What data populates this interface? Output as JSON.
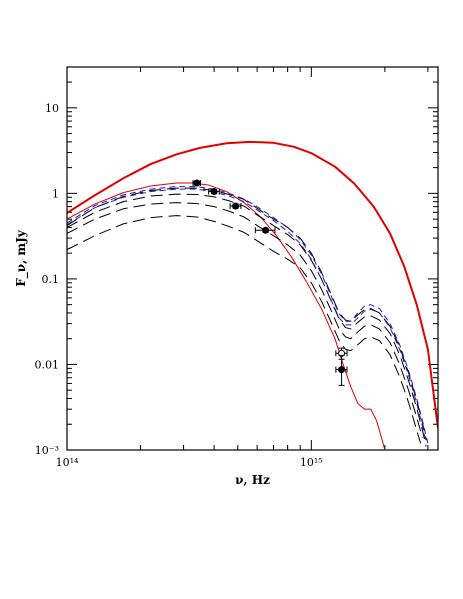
{
  "chart_data": {
    "type": "line",
    "xscale": "log",
    "yscale": "log",
    "xlim": [
      100000000000000.0,
      3300000000000000.0
    ],
    "ylim": [
      0.001,
      30
    ],
    "xlabel": "ν, Hz",
    "ylabel": "F_ν, mJy",
    "grid": false,
    "x_tick_labels": [
      {
        "value": 100000000000000.0,
        "label": "10¹⁴"
      },
      {
        "value": 1000000000000000.0,
        "label": "10¹⁵"
      }
    ],
    "y_tick_labels": [
      {
        "value": 10,
        "label": "10"
      },
      {
        "value": 1,
        "label": "1"
      },
      {
        "value": 0.1,
        "label": "0.1"
      },
      {
        "value": 0.01,
        "label": "0.01"
      },
      {
        "value": 0.001,
        "label": "10⁻³"
      }
    ],
    "series": [
      {
        "style": "solid",
        "color": "#e00000",
        "width": 2,
        "points": [
          [
            100000000000000.0,
            0.59
          ],
          [
            130000000000000.0,
            0.95
          ],
          [
            170000000000000.0,
            1.5
          ],
          [
            220000000000000.0,
            2.2
          ],
          [
            280000000000000.0,
            2.85
          ],
          [
            350000000000000.0,
            3.4
          ],
          [
            450000000000000.0,
            3.85
          ],
          [
            560000000000000.0,
            4.0
          ],
          [
            700000000000000.0,
            3.9
          ],
          [
            850000000000000.0,
            3.5
          ],
          [
            1000000000000000.0,
            2.95
          ],
          [
            1250000000000000.0,
            2.05
          ],
          [
            1500000000000000.0,
            1.3
          ],
          [
            1800000000000000.0,
            0.7
          ],
          [
            2100000000000000.0,
            0.34
          ],
          [
            2400000000000000.0,
            0.14
          ],
          [
            2700000000000000.0,
            0.05
          ],
          [
            3000000000000000.0,
            0.015
          ],
          [
            3300000000000000.0,
            0.0018
          ]
        ]
      },
      {
        "style": "solid",
        "color": "#e00000",
        "width": 1,
        "points": [
          [
            100000000000000.0,
            0.5
          ],
          [
            130000000000000.0,
            0.75
          ],
          [
            170000000000000.0,
            1.02
          ],
          [
            220000000000000.0,
            1.22
          ],
          [
            280000000000000.0,
            1.32
          ],
          [
            330000000000000.0,
            1.32
          ],
          [
            380000000000000.0,
            1.25
          ],
          [
            450000000000000.0,
            1.05
          ],
          [
            530000000000000.0,
            0.78
          ],
          [
            620000000000000.0,
            0.53
          ],
          [
            720000000000000.0,
            0.32
          ],
          [
            830000000000000.0,
            0.18
          ],
          [
            950000000000000.0,
            0.095
          ],
          [
            1100000000000000.0,
            0.045
          ],
          [
            1250000000000000.0,
            0.02
          ],
          [
            1350000000000000.0,
            0.01
          ],
          [
            1450000000000000.0,
            0.0055
          ],
          [
            1550000000000000.0,
            0.0035
          ],
          [
            1650000000000000.0,
            0.003
          ],
          [
            1750000000000000.0,
            0.003
          ],
          [
            1850000000000000.0,
            0.0022
          ],
          [
            1950000000000000.0,
            0.0013
          ],
          [
            2000000000000000.0,
            0.001
          ]
        ]
      },
      {
        "style": "dashed-long",
        "color": "#000000",
        "width": 1,
        "points": [
          [
            100000000000000.0,
            0.42
          ],
          [
            130000000000000.0,
            0.68
          ],
          [
            170000000000000.0,
            0.92
          ],
          [
            220000000000000.0,
            1.08
          ],
          [
            280000000000000.0,
            1.15
          ],
          [
            340000000000000.0,
            1.15
          ],
          [
            400000000000000.0,
            1.08
          ],
          [
            460000000000000.0,
            0.97
          ],
          [
            530000000000000.0,
            0.85
          ],
          [
            600000000000000.0,
            0.67
          ],
          [
            700000000000000.0,
            0.5
          ],
          [
            800000000000000.0,
            0.4
          ],
          [
            900000000000000.0,
            0.3
          ],
          [
            1000000000000000.0,
            0.2
          ],
          [
            1100000000000000.0,
            0.12
          ],
          [
            1200000000000000.0,
            0.068
          ],
          [
            1300000000000000.0,
            0.04
          ],
          [
            1380000000000000.0,
            0.033
          ],
          [
            1450000000000000.0,
            0.032
          ],
          [
            1550000000000000.0,
            0.038
          ],
          [
            1650000000000000.0,
            0.044
          ],
          [
            1750000000000000.0,
            0.045
          ],
          [
            1900000000000000.0,
            0.04
          ],
          [
            2100000000000000.0,
            0.028
          ],
          [
            2300000000000000.0,
            0.016
          ],
          [
            2500000000000000.0,
            0.008
          ],
          [
            2700000000000000.0,
            0.0038
          ],
          [
            2850000000000000.0,
            0.0021
          ],
          [
            2950000000000000.0,
            0.0013
          ]
        ]
      },
      {
        "style": "dashed-long",
        "color": "#000000",
        "width": 1,
        "points": [
          [
            100000000000000.0,
            0.4
          ],
          [
            130000000000000.0,
            0.6
          ],
          [
            170000000000000.0,
            0.8
          ],
          [
            220000000000000.0,
            0.93
          ],
          [
            280000000000000.0,
            0.98
          ],
          [
            340000000000000.0,
            0.97
          ],
          [
            400000000000000.0,
            0.91
          ],
          [
            460000000000000.0,
            0.82
          ],
          [
            530000000000000.0,
            0.71
          ],
          [
            600000000000000.0,
            0.56
          ],
          [
            700000000000000.0,
            0.42
          ],
          [
            800000000000000.0,
            0.33
          ],
          [
            900000000000000.0,
            0.25
          ],
          [
            1000000000000000.0,
            0.165
          ],
          [
            1100000000000000.0,
            0.1
          ],
          [
            1200000000000000.0,
            0.057
          ],
          [
            1300000000000000.0,
            0.034
          ],
          [
            1380000000000000.0,
            0.027
          ],
          [
            1450000000000000.0,
            0.026
          ],
          [
            1550000000000000.0,
            0.031
          ],
          [
            1650000000000000.0,
            0.036
          ],
          [
            1750000000000000.0,
            0.037
          ],
          [
            1900000000000000.0,
            0.033
          ],
          [
            2100000000000000.0,
            0.023
          ],
          [
            2300000000000000.0,
            0.013
          ],
          [
            2500000000000000.0,
            0.0065
          ],
          [
            2700000000000000.0,
            0.0031
          ],
          [
            2850000000000000.0,
            0.0017
          ],
          [
            2950000000000000.0,
            0.0011
          ]
        ]
      },
      {
        "style": "dashed-long",
        "color": "#000000",
        "width": 1,
        "points": [
          [
            100000000000000.0,
            0.34
          ],
          [
            130000000000000.0,
            0.5
          ],
          [
            170000000000000.0,
            0.66
          ],
          [
            220000000000000.0,
            0.75
          ],
          [
            280000000000000.0,
            0.78
          ],
          [
            340000000000000.0,
            0.76
          ],
          [
            400000000000000.0,
            0.7
          ],
          [
            460000000000000.0,
            0.62
          ],
          [
            530000000000000.0,
            0.53
          ],
          [
            600000000000000.0,
            0.42
          ],
          [
            700000000000000.0,
            0.32
          ],
          [
            800000000000000.0,
            0.25
          ],
          [
            900000000000000.0,
            0.19
          ],
          [
            1000000000000000.0,
            0.125
          ],
          [
            1100000000000000.0,
            0.076
          ],
          [
            1200000000000000.0,
            0.044
          ],
          [
            1300000000000000.0,
            0.026
          ],
          [
            1380000000000000.0,
            0.021
          ],
          [
            1450000000000000.0,
            0.02
          ],
          [
            1550000000000000.0,
            0.024
          ],
          [
            1650000000000000.0,
            0.028
          ],
          [
            1750000000000000.0,
            0.029
          ],
          [
            1900000000000000.0,
            0.026
          ],
          [
            2100000000000000.0,
            0.018
          ],
          [
            2300000000000000.0,
            0.01
          ],
          [
            2500000000000000.0,
            0.005
          ],
          [
            2700000000000000.0,
            0.0024
          ],
          [
            2850000000000000.0,
            0.0014
          ]
        ]
      },
      {
        "style": "dashed-long",
        "color": "#000000",
        "width": 1,
        "points": [
          [
            100000000000000.0,
            0.22
          ],
          [
            130000000000000.0,
            0.32
          ],
          [
            170000000000000.0,
            0.44
          ],
          [
            220000000000000.0,
            0.52
          ],
          [
            280000000000000.0,
            0.55
          ],
          [
            340000000000000.0,
            0.53
          ],
          [
            400000000000000.0,
            0.47
          ],
          [
            460000000000000.0,
            0.41
          ],
          [
            530000000000000.0,
            0.35
          ],
          [
            600000000000000.0,
            0.28
          ],
          [
            700000000000000.0,
            0.21
          ],
          [
            800000000000000.0,
            0.17
          ],
          [
            900000000000000.0,
            0.135
          ],
          [
            1000000000000000.0,
            0.09
          ],
          [
            1100000000000000.0,
            0.055
          ],
          [
            1200000000000000.0,
            0.032
          ],
          [
            1300000000000000.0,
            0.019
          ],
          [
            1380000000000000.0,
            0.015
          ],
          [
            1450000000000000.0,
            0.0145
          ],
          [
            1550000000000000.0,
            0.017
          ],
          [
            1650000000000000.0,
            0.02
          ],
          [
            1750000000000000.0,
            0.021
          ],
          [
            1900000000000000.0,
            0.019
          ],
          [
            2100000000000000.0,
            0.013
          ],
          [
            2300000000000000.0,
            0.0072
          ],
          [
            2500000000000000.0,
            0.0036
          ],
          [
            2700000000000000.0,
            0.0017
          ],
          [
            2800000000000000.0,
            0.0012
          ]
        ]
      },
      {
        "style": "dashed-short",
        "color": "#2020b0",
        "width": 1,
        "points": [
          [
            100000000000000.0,
            0.45
          ],
          [
            130000000000000.0,
            0.72
          ],
          [
            170000000000000.0,
            0.96
          ],
          [
            220000000000000.0,
            1.12
          ],
          [
            280000000000000.0,
            1.2
          ],
          [
            340000000000000.0,
            1.2
          ],
          [
            400000000000000.0,
            1.12
          ],
          [
            460000000000000.0,
            1.0
          ],
          [
            530000000000000.0,
            0.86
          ],
          [
            600000000000000.0,
            0.7
          ],
          [
            700000000000000.0,
            0.52
          ],
          [
            800000000000000.0,
            0.4
          ],
          [
            900000000000000.0,
            0.29
          ],
          [
            1000000000000000.0,
            0.19
          ],
          [
            1100000000000000.0,
            0.115
          ],
          [
            1200000000000000.0,
            0.065
          ],
          [
            1300000000000000.0,
            0.039
          ],
          [
            1380000000000000.0,
            0.032
          ],
          [
            1450000000000000.0,
            0.032
          ],
          [
            1550000000000000.0,
            0.04
          ],
          [
            1650000000000000.0,
            0.048
          ],
          [
            1750000000000000.0,
            0.05
          ],
          [
            1900000000000000.0,
            0.045
          ],
          [
            2100000000000000.0,
            0.03
          ],
          [
            2300000000000000.0,
            0.017
          ],
          [
            2500000000000000.0,
            0.0085
          ],
          [
            2700000000000000.0,
            0.004
          ],
          [
            2850000000000000.0,
            0.0022
          ],
          [
            3000000000000000.0,
            0.0012
          ]
        ]
      },
      {
        "style": "dashed-short",
        "color": "#2020b0",
        "width": 1,
        "points": [
          [
            100000000000000.0,
            0.43
          ],
          [
            130000000000000.0,
            0.68
          ],
          [
            170000000000000.0,
            0.9
          ],
          [
            220000000000000.0,
            1.05
          ],
          [
            280000000000000.0,
            1.12
          ],
          [
            340000000000000.0,
            1.12
          ],
          [
            400000000000000.0,
            1.04
          ],
          [
            460000000000000.0,
            0.93
          ],
          [
            530000000000000.0,
            0.8
          ],
          [
            600000000000000.0,
            0.64
          ],
          [
            700000000000000.0,
            0.48
          ],
          [
            800000000000000.0,
            0.36
          ],
          [
            900000000000000.0,
            0.26
          ],
          [
            1000000000000000.0,
            0.17
          ],
          [
            1100000000000000.0,
            0.1
          ],
          [
            1200000000000000.0,
            0.058
          ],
          [
            1300000000000000.0,
            0.035
          ],
          [
            1380000000000000.0,
            0.029
          ],
          [
            1450000000000000.0,
            0.029
          ],
          [
            1550000000000000.0,
            0.035
          ],
          [
            1650000000000000.0,
            0.042
          ],
          [
            1750000000000000.0,
            0.044
          ],
          [
            1900000000000000.0,
            0.04
          ],
          [
            2100000000000000.0,
            0.027
          ],
          [
            2300000000000000.0,
            0.015
          ],
          [
            2500000000000000.0,
            0.0075
          ],
          [
            2700000000000000.0,
            0.0035
          ],
          [
            2850000000000000.0,
            0.0019
          ],
          [
            2950000000000000.0,
            0.0012
          ]
        ]
      }
    ],
    "data_points": [
      {
        "x": 340000000000000.0,
        "y": 1.32,
        "xerr": 12000000000000.0,
        "yerr_low": 0.07,
        "yerr_high": 0.07,
        "marker": "filled"
      },
      {
        "x": 400000000000000.0,
        "y": 1.05,
        "xerr": 20000000000000.0,
        "yerr_low": 0.06,
        "yerr_high": 0.06,
        "marker": "filled"
      },
      {
        "x": 490000000000000.0,
        "y": 0.71,
        "xerr": 25000000000000.0,
        "yerr_low": 0.04,
        "yerr_high": 0.04,
        "marker": "filled"
      },
      {
        "x": 650000000000000.0,
        "y": 0.37,
        "xerr": 60000000000000.0,
        "yerr_low": 0.02,
        "yerr_high": 0.02,
        "marker": "filled"
      },
      {
        "x": 1330000000000000.0,
        "y": 0.0135,
        "xerr": 70000000000000.0,
        "yerr_low": 0.002,
        "yerr_high": 0.002,
        "marker": "open"
      },
      {
        "x": 1330000000000000.0,
        "y": 0.0087,
        "xerr": 70000000000000.0,
        "yerr_low": 0.003,
        "yerr_high": 0.004,
        "marker": "filled"
      }
    ],
    "colors": {
      "axes": "#000000",
      "red": "#e00000",
      "blue": "#2020b0",
      "black": "#000000"
    }
  }
}
